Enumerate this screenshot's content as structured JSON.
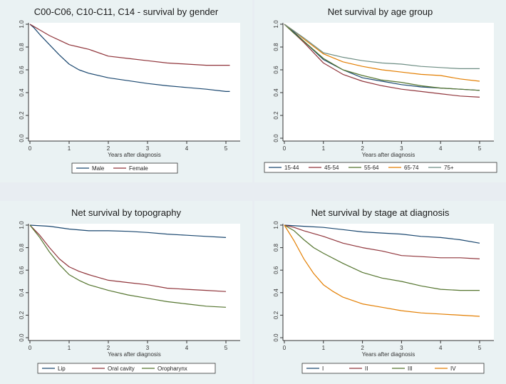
{
  "chart_data": [
    {
      "type": "line",
      "title": "C00-C06, C10-C11, C14 - survival by gender",
      "xlabel": "Years after diagnosis",
      "ylabel": "",
      "xlim": [
        0,
        5
      ],
      "ylim": [
        0,
        1
      ],
      "x_ticks": [
        "0",
        "1",
        "2",
        "3",
        "4",
        "5"
      ],
      "y_ticks": [
        "0.0",
        "0.2",
        "0.4",
        "0.6",
        "0.8",
        "1.0"
      ],
      "grid": false,
      "legend_position": "bottom",
      "series": [
        {
          "name": "Male",
          "color": "#1a476f",
          "x": [
            0,
            0.1,
            0.25,
            0.5,
            0.75,
            1,
            1.25,
            1.5,
            2,
            2.5,
            3,
            3.5,
            4,
            4.5,
            5,
            5.1
          ],
          "y": [
            1.0,
            0.97,
            0.91,
            0.82,
            0.73,
            0.65,
            0.6,
            0.57,
            0.53,
            0.505,
            0.48,
            0.46,
            0.445,
            0.43,
            0.41,
            0.41
          ]
        },
        {
          "name": "Female",
          "color": "#90353b",
          "x": [
            0,
            0.1,
            0.25,
            0.5,
            0.75,
            1,
            1.25,
            1.5,
            2,
            2.5,
            3,
            3.5,
            4,
            4.5,
            5,
            5.1
          ],
          "y": [
            1.0,
            0.98,
            0.95,
            0.9,
            0.86,
            0.82,
            0.8,
            0.78,
            0.72,
            0.7,
            0.68,
            0.66,
            0.65,
            0.64,
            0.64,
            0.64
          ]
        }
      ]
    },
    {
      "type": "line",
      "title": "Net survival by age group",
      "xlabel": "Years after diagnosis",
      "ylabel": "",
      "xlim": [
        0,
        5
      ],
      "ylim": [
        0,
        1
      ],
      "x_ticks": [
        "0",
        "1",
        "2",
        "3",
        "4",
        "5"
      ],
      "y_ticks": [
        "0.0",
        "0.2",
        "0.4",
        "0.6",
        "0.8",
        "1.0"
      ],
      "grid": false,
      "legend_position": "bottom",
      "series": [
        {
          "name": "15-44",
          "color": "#1a476f",
          "x": [
            0,
            0.25,
            0.5,
            1,
            1.5,
            2,
            2.5,
            3,
            3.5,
            4,
            4.5,
            5
          ],
          "y": [
            1.0,
            0.93,
            0.85,
            0.69,
            0.6,
            0.53,
            0.5,
            0.47,
            0.45,
            0.44,
            0.43,
            0.42
          ]
        },
        {
          "name": "45-54",
          "color": "#90353b",
          "x": [
            0,
            0.25,
            0.5,
            1,
            1.5,
            2,
            2.5,
            3,
            3.5,
            4,
            4.5,
            5
          ],
          "y": [
            1.0,
            0.92,
            0.84,
            0.66,
            0.56,
            0.5,
            0.46,
            0.43,
            0.41,
            0.39,
            0.37,
            0.36
          ]
        },
        {
          "name": "55-64",
          "color": "#55752f",
          "x": [
            0,
            0.25,
            0.5,
            1,
            1.5,
            2,
            2.5,
            3,
            3.5,
            4,
            4.5,
            5
          ],
          "y": [
            1.0,
            0.92,
            0.85,
            0.7,
            0.6,
            0.55,
            0.51,
            0.49,
            0.46,
            0.44,
            0.43,
            0.42
          ]
        },
        {
          "name": "65-74",
          "color": "#e37e00",
          "x": [
            0,
            0.25,
            0.5,
            1,
            1.5,
            2,
            2.5,
            3,
            3.5,
            4,
            4.5,
            5
          ],
          "y": [
            1.0,
            0.94,
            0.87,
            0.74,
            0.67,
            0.63,
            0.6,
            0.58,
            0.56,
            0.55,
            0.52,
            0.5
          ]
        },
        {
          "name": "75+",
          "color": "#6e8e84",
          "x": [
            0,
            0.25,
            0.5,
            1,
            1.5,
            2,
            2.5,
            3,
            3.5,
            4,
            4.5,
            5
          ],
          "y": [
            1.0,
            0.94,
            0.88,
            0.75,
            0.71,
            0.68,
            0.66,
            0.65,
            0.63,
            0.62,
            0.61,
            0.61
          ]
        }
      ]
    },
    {
      "type": "line",
      "title": "Net survival by topography",
      "xlabel": "Years after diagnosis",
      "ylabel": "",
      "xlim": [
        0,
        5
      ],
      "ylim": [
        0,
        1
      ],
      "x_ticks": [
        "0",
        "1",
        "2",
        "3",
        "4",
        "5"
      ],
      "y_ticks": [
        "0.0",
        "0.2",
        "0.4",
        "0.6",
        "0.8",
        "1.0"
      ],
      "grid": false,
      "legend_position": "bottom",
      "series": [
        {
          "name": "Lip",
          "color": "#1a476f",
          "x": [
            0,
            0.5,
            1,
            1.5,
            2,
            2.5,
            3,
            3.5,
            4,
            4.5,
            5
          ],
          "y": [
            1.0,
            0.99,
            0.965,
            0.95,
            0.95,
            0.945,
            0.935,
            0.92,
            0.91,
            0.9,
            0.89
          ]
        },
        {
          "name": "Oral cavity",
          "color": "#90353b",
          "x": [
            0,
            0.25,
            0.5,
            0.75,
            1,
            1.25,
            1.5,
            2,
            2.5,
            3,
            3.5,
            4,
            4.5,
            5
          ],
          "y": [
            1.0,
            0.91,
            0.8,
            0.7,
            0.63,
            0.59,
            0.56,
            0.51,
            0.49,
            0.47,
            0.44,
            0.43,
            0.42,
            0.41
          ]
        },
        {
          "name": "Oropharynx",
          "color": "#55752f",
          "x": [
            0,
            0.25,
            0.5,
            0.75,
            1,
            1.25,
            1.5,
            2,
            2.5,
            3,
            3.5,
            4,
            4.5,
            5
          ],
          "y": [
            1.0,
            0.89,
            0.76,
            0.65,
            0.56,
            0.51,
            0.47,
            0.42,
            0.38,
            0.35,
            0.32,
            0.3,
            0.28,
            0.27
          ]
        }
      ]
    },
    {
      "type": "line",
      "title": "Net survival by stage at diagnosis",
      "xlabel": "Years after diagnosis",
      "ylabel": "",
      "xlim": [
        0,
        5
      ],
      "ylim": [
        0,
        1
      ],
      "x_ticks": [
        "0",
        "1",
        "2",
        "3",
        "4",
        "5"
      ],
      "y_ticks": [
        "0.0",
        "0.2",
        "0.4",
        "0.6",
        "0.8",
        "1.0"
      ],
      "grid": false,
      "legend_position": "bottom",
      "series": [
        {
          "name": "I",
          "color": "#1a476f",
          "x": [
            0,
            0.5,
            1,
            1.5,
            2,
            2.5,
            3,
            3.5,
            4,
            4.5,
            5
          ],
          "y": [
            1.0,
            0.99,
            0.98,
            0.96,
            0.94,
            0.93,
            0.92,
            0.9,
            0.89,
            0.87,
            0.84
          ]
        },
        {
          "name": "II",
          "color": "#90353b",
          "x": [
            0,
            0.25,
            0.5,
            1,
            1.5,
            2,
            2.5,
            3,
            3.5,
            4,
            4.5,
            5
          ],
          "y": [
            1.0,
            0.98,
            0.95,
            0.9,
            0.84,
            0.8,
            0.77,
            0.73,
            0.72,
            0.71,
            0.71,
            0.7
          ]
        },
        {
          "name": "III",
          "color": "#55752f",
          "x": [
            0,
            0.25,
            0.5,
            0.75,
            1,
            1.5,
            2,
            2.5,
            3,
            3.5,
            4,
            4.5,
            5
          ],
          "y": [
            1.0,
            0.95,
            0.87,
            0.8,
            0.75,
            0.66,
            0.58,
            0.53,
            0.5,
            0.46,
            0.43,
            0.42,
            0.42
          ]
        },
        {
          "name": "IV",
          "color": "#e37e00",
          "x": [
            0,
            0.25,
            0.5,
            0.75,
            1,
            1.25,
            1.5,
            2,
            2.5,
            3,
            3.5,
            4,
            4.5,
            5
          ],
          "y": [
            1.0,
            0.86,
            0.7,
            0.57,
            0.47,
            0.41,
            0.36,
            0.3,
            0.27,
            0.24,
            0.22,
            0.21,
            0.2,
            0.19
          ]
        }
      ]
    }
  ]
}
